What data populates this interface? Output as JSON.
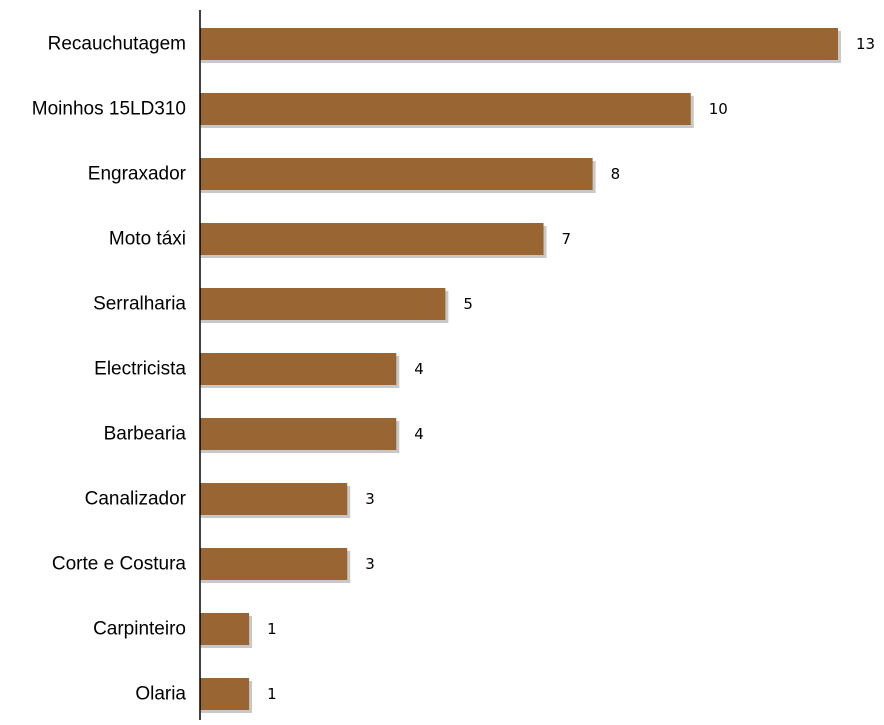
{
  "chart_data": {
    "type": "bar",
    "orientation": "horizontal",
    "categories": [
      "Recauchutagem",
      "Moinhos 15LD310",
      "Engraxador",
      "Moto táxi",
      "Serralharia",
      "Electricista",
      "Barbearia",
      "Canalizador",
      "Corte e Costura",
      "Carpinteiro",
      "Olaria"
    ],
    "values": [
      13,
      10,
      8,
      7,
      5,
      4,
      4,
      3,
      3,
      1,
      1
    ],
    "data_labels": [
      "13",
      "10",
      "8",
      "7",
      "5",
      "4",
      "4",
      "3",
      "3",
      "1",
      "1"
    ],
    "title": "",
    "xlabel": "",
    "ylabel": "",
    "xlim": [
      0,
      13
    ],
    "grid": false,
    "legend": "none",
    "bar_color": "#996633",
    "bar_shadow_color": "#c8c8c8"
  }
}
